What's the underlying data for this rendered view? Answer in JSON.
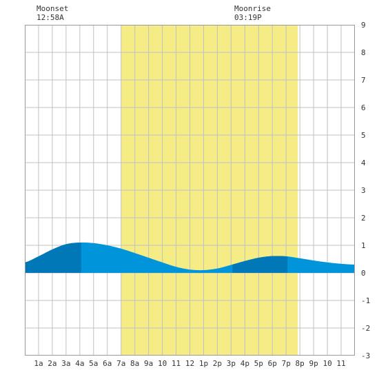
{
  "chart_data": {
    "type": "area",
    "x_ticks": [
      "1a",
      "2a",
      "3a",
      "4a",
      "5a",
      "6a",
      "7a",
      "8a",
      "9a",
      "10",
      "11",
      "12",
      "1p",
      "2p",
      "3p",
      "4p",
      "5p",
      "6p",
      "7p",
      "8p",
      "9p",
      "10",
      "11"
    ],
    "y_ticks": [
      "-3",
      "-2",
      "-1",
      "0",
      "1",
      "2",
      "3",
      "4",
      "5",
      "6",
      "7",
      "8",
      "9"
    ],
    "xlim": [
      0,
      24
    ],
    "ylim": [
      -3,
      9
    ],
    "grid": true,
    "series": [
      {
        "x": [
          0,
          1,
          2,
          3,
          4,
          5,
          6,
          7,
          8,
          9,
          10,
          11,
          12,
          13,
          14,
          15,
          16,
          17,
          18,
          19,
          20,
          21,
          22,
          23,
          24
        ],
        "values": [
          0.38,
          0.6,
          0.85,
          1.04,
          1.1,
          1.08,
          1.0,
          0.88,
          0.72,
          0.55,
          0.38,
          0.22,
          0.12,
          0.1,
          0.16,
          0.29,
          0.43,
          0.55,
          0.61,
          0.6,
          0.53,
          0.45,
          0.38,
          0.33,
          0.3
        ]
      }
    ],
    "daylight": {
      "start": 7,
      "end": 19.85
    },
    "shaded_intervals": [
      [
        0,
        4.1
      ],
      [
        15.1,
        19.1
      ]
    ],
    "moon_events": [
      {
        "label": "Moonset",
        "time": "12:58A",
        "x": 1.0
      },
      {
        "label": "Moonrise",
        "time": "03:19P",
        "x": 15.3
      }
    ],
    "colors": {
      "daylight": "#f5ec86",
      "water": "#0095da",
      "water_dark": "#0077b6",
      "grid": "#c0c0c0",
      "text": "#333333"
    }
  }
}
